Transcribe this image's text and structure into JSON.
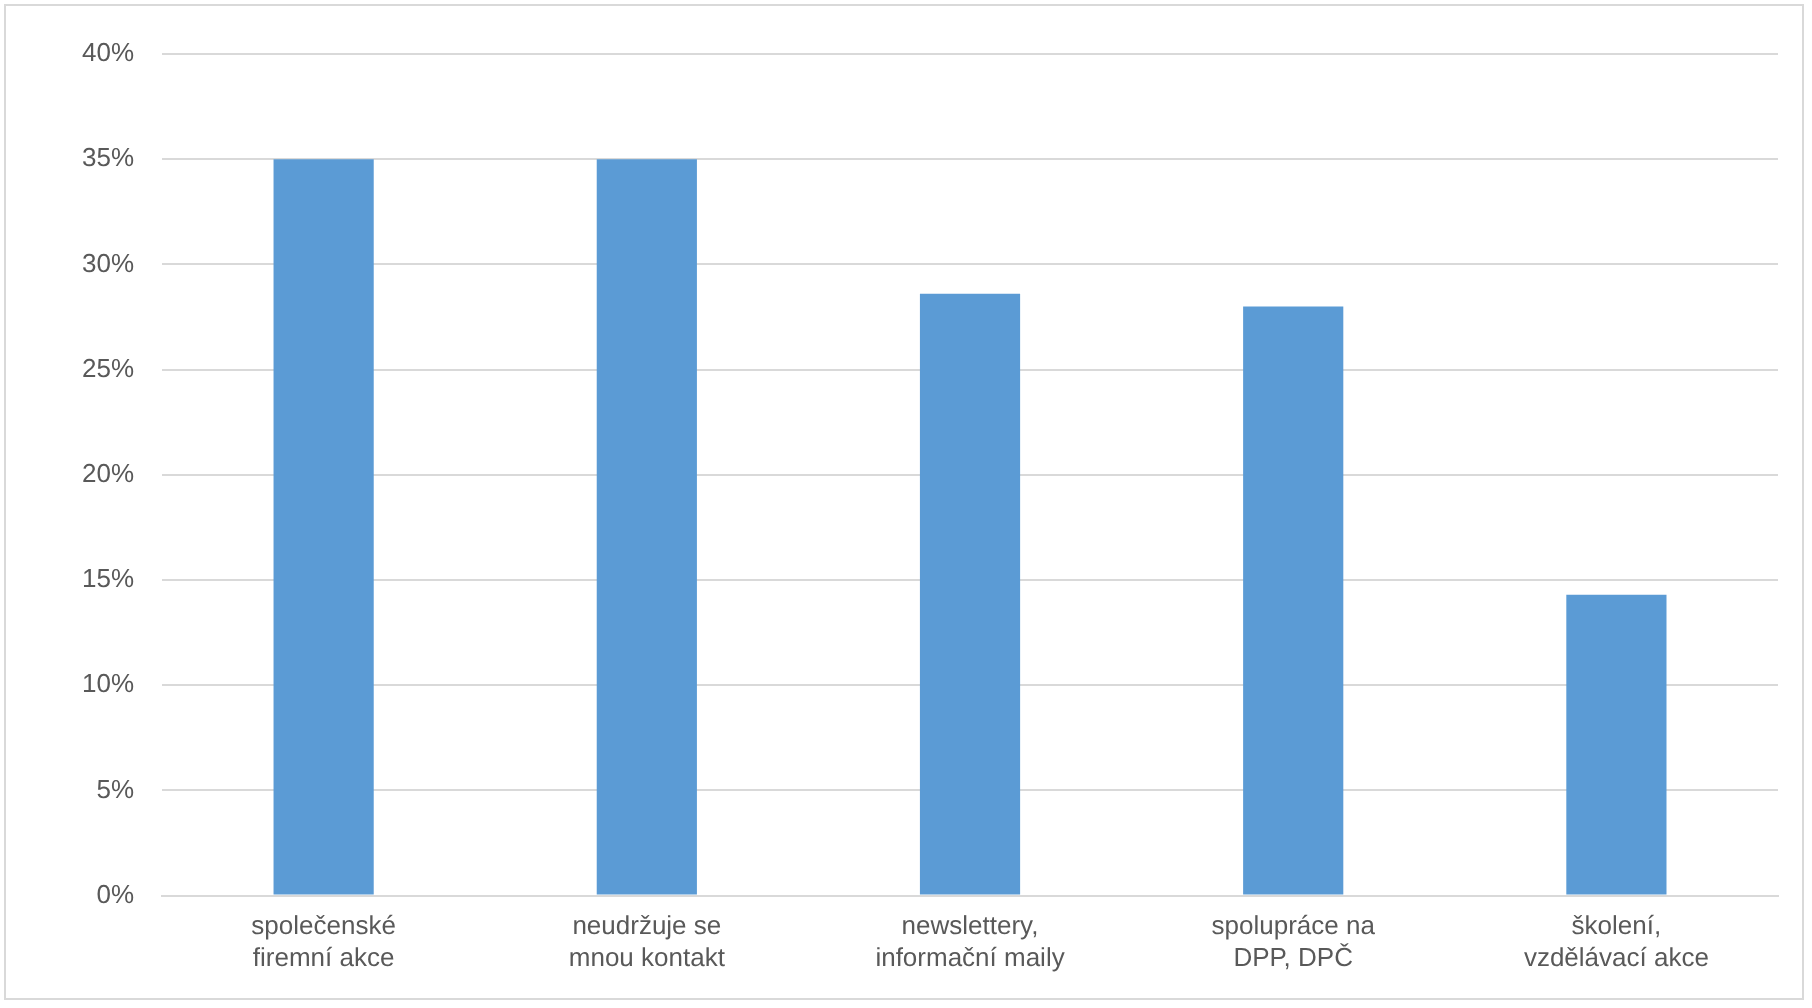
{
  "chart_data": {
    "type": "bar",
    "categories": [
      "společenské\nfiremní akce",
      "neudržuje se\nmnou kontakt",
      "newslettery,\ninformační maily",
      "spolupráce na\nDPP, DPČ",
      "školení,\nvzdělávací akce"
    ],
    "values": [
      35,
      35,
      28.6,
      28,
      14.3
    ],
    "color": "#5b9bd5",
    "ylim": [
      0,
      40
    ],
    "yticks": [
      {
        "value": 0,
        "label": "0%"
      },
      {
        "value": 5,
        "label": "5%"
      },
      {
        "value": 10,
        "label": "10%"
      },
      {
        "value": 15,
        "label": "15%"
      },
      {
        "value": 20,
        "label": "20%"
      },
      {
        "value": 25,
        "label": "25%"
      },
      {
        "value": 30,
        "label": "30%"
      },
      {
        "value": 35,
        "label": "35%"
      },
      {
        "value": 40,
        "label": "40%"
      }
    ],
    "grid": "y",
    "legend": false
  }
}
